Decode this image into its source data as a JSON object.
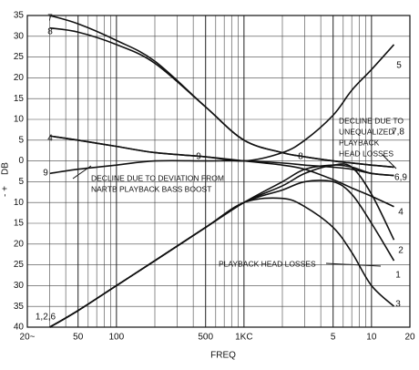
{
  "chart_data": {
    "type": "line",
    "xlabel": "FREQ",
    "ylabel": "DB",
    "ysign": "- +",
    "xscale": "log",
    "grid": true,
    "color": "#111111",
    "xlim": [
      20,
      20000
    ],
    "ylim": [
      -40,
      35
    ],
    "xticks": [
      {
        "value": 20,
        "label": "20~"
      },
      50,
      100,
      500,
      {
        "value": 1000,
        "label": "1KC"
      },
      {
        "value": 5000,
        "label": "5"
      },
      {
        "value": 10000,
        "label": "10"
      },
      {
        "value": 20000,
        "label": "20"
      }
    ],
    "xminor": [
      30,
      40,
      60,
      70,
      80,
      90,
      200,
      300,
      400,
      600,
      700,
      800,
      900,
      2000,
      3000,
      4000,
      6000,
      7000,
      8000,
      9000
    ],
    "yticks": [
      35,
      30,
      25,
      20,
      15,
      10,
      5,
      0,
      {
        "value": -5,
        "label": "5"
      },
      {
        "value": -10,
        "label": "10"
      },
      {
        "value": -15,
        "label": "15"
      },
      {
        "value": -20,
        "label": "20"
      },
      {
        "value": -25,
        "label": "25"
      },
      {
        "value": -30,
        "label": "30"
      },
      {
        "value": -35,
        "label": "35"
      },
      {
        "value": -40,
        "label": "40"
      }
    ],
    "x": [
      30,
      50,
      100,
      200,
      500,
      1000,
      2000,
      3000,
      5000,
      7000,
      10000,
      15000
    ],
    "series": [
      {
        "color": "#111111",
        "values": [
          35,
          33,
          29,
          24,
          13,
          5,
          2,
          1,
          0,
          -0.5,
          -1,
          -1.5
        ]
      },
      {
        "color": "#111111",
        "values": [
          32,
          31,
          28,
          23.5,
          13,
          5,
          2,
          1,
          0,
          -0.5,
          -1,
          -1.5
        ]
      },
      {
        "color": "#111111",
        "values": [
          6,
          5,
          3.5,
          2,
          1,
          0,
          2,
          5,
          11,
          17,
          22,
          28
        ]
      },
      {
        "color": "#111111",
        "values": [
          6,
          5,
          3.5,
          2,
          1,
          0,
          -1,
          -2,
          -4.5,
          -6.5,
          -8.5,
          -11
        ]
      },
      {
        "color": "#111111",
        "values": [
          -3,
          -2,
          -1,
          0,
          0,
          0,
          -0.5,
          -1,
          -1.5,
          -2,
          -3,
          -3.5
        ]
      },
      {
        "color": "#111111",
        "values": [
          -40,
          -36,
          -30,
          -24,
          -16,
          -10,
          -5,
          -2,
          -1,
          -1.5,
          -3,
          -3.5
        ]
      },
      {
        "color": "#111111",
        "values": [
          -40,
          -36,
          -30,
          -24,
          -16,
          -10,
          -6,
          -3,
          -1,
          -1.5,
          -8,
          -19
        ]
      },
      {
        "color": "#111111",
        "values": [
          -40,
          -36,
          -30,
          -24,
          -16,
          -10,
          -7,
          -5,
          -5,
          -8,
          -15,
          -24
        ]
      },
      {
        "color": "#111111",
        "values": [
          -40,
          -36,
          -30,
          -24,
          -16,
          -10,
          -9,
          -11,
          -16,
          -22,
          -30,
          -35
        ]
      }
    ],
    "annotations": [
      "7",
      "8",
      "4",
      "9",
      "1,2,6",
      "9",
      "8",
      "7,8",
      "6,9",
      "5",
      "4",
      "2",
      "1",
      "3",
      "DECLINE DUE TO DEVIATION FROM",
      "NARTB PLAYBACK BASS BOOST",
      "DECLINE DUE TO",
      "UNEQUALIZED",
      "PLAYBACK",
      "HEAD LOSSES",
      "PLAYBACK HEAD LOSSES"
    ]
  }
}
